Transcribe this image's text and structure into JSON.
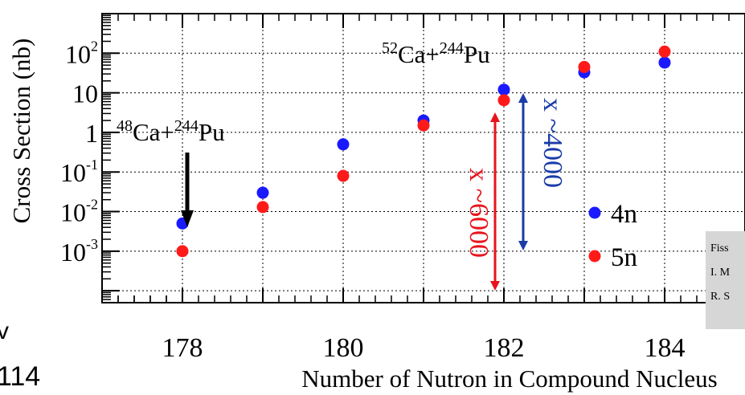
{
  "chart_data": {
    "type": "scatter",
    "xlabel": "Number of Nutron in Compound Nucleus",
    "ylabel": "Cross Section (nb)",
    "yscale": "log",
    "xlim": [
      177,
      185
    ],
    "ylim": [
      5e-05,
      1000
    ],
    "x_ticks": [
      "178",
      "180",
      "182",
      "184"
    ],
    "y_ticks": [
      {
        "base": "10",
        "exp": "-3"
      },
      {
        "base": "10",
        "exp": "-2"
      },
      {
        "base": "10",
        "exp": "-1"
      },
      {
        "base": "1",
        "exp": ""
      },
      {
        "base": "10",
        "exp": ""
      },
      {
        "base": "10",
        "exp": "2"
      }
    ],
    "grid": true,
    "series": [
      {
        "name": "4n",
        "color": "#1a1aff",
        "x": [
          178,
          179,
          180,
          181,
          182,
          183,
          184
        ],
        "y": [
          0.005,
          0.03,
          0.5,
          2,
          12,
          33,
          58
        ]
      },
      {
        "name": "5n",
        "color": "#ff1a1a",
        "x": [
          178,
          179,
          180,
          181,
          182,
          183,
          184
        ],
        "y": [
          0.001,
          0.013,
          0.08,
          1.5,
          6.5,
          45,
          110
        ]
      }
    ],
    "legend_position": "right",
    "annotations": {
      "ca48": {
        "mass": "48",
        "el1": "Ca+",
        "mass2": "244",
        "el2": "Pu"
      },
      "ca52": {
        "mass": "52",
        "el1": "Ca+",
        "mass2": "244",
        "el2": "Pu"
      },
      "red_factor": "x ~6000",
      "blue_factor": "x ~4000"
    }
  },
  "side_note": {
    "lines": [
      "Fiss",
      "I. M",
      "R. S"
    ],
    "color": "#d6d6d6"
  },
  "edge_left": {
    "char": "v",
    "number": "114"
  }
}
